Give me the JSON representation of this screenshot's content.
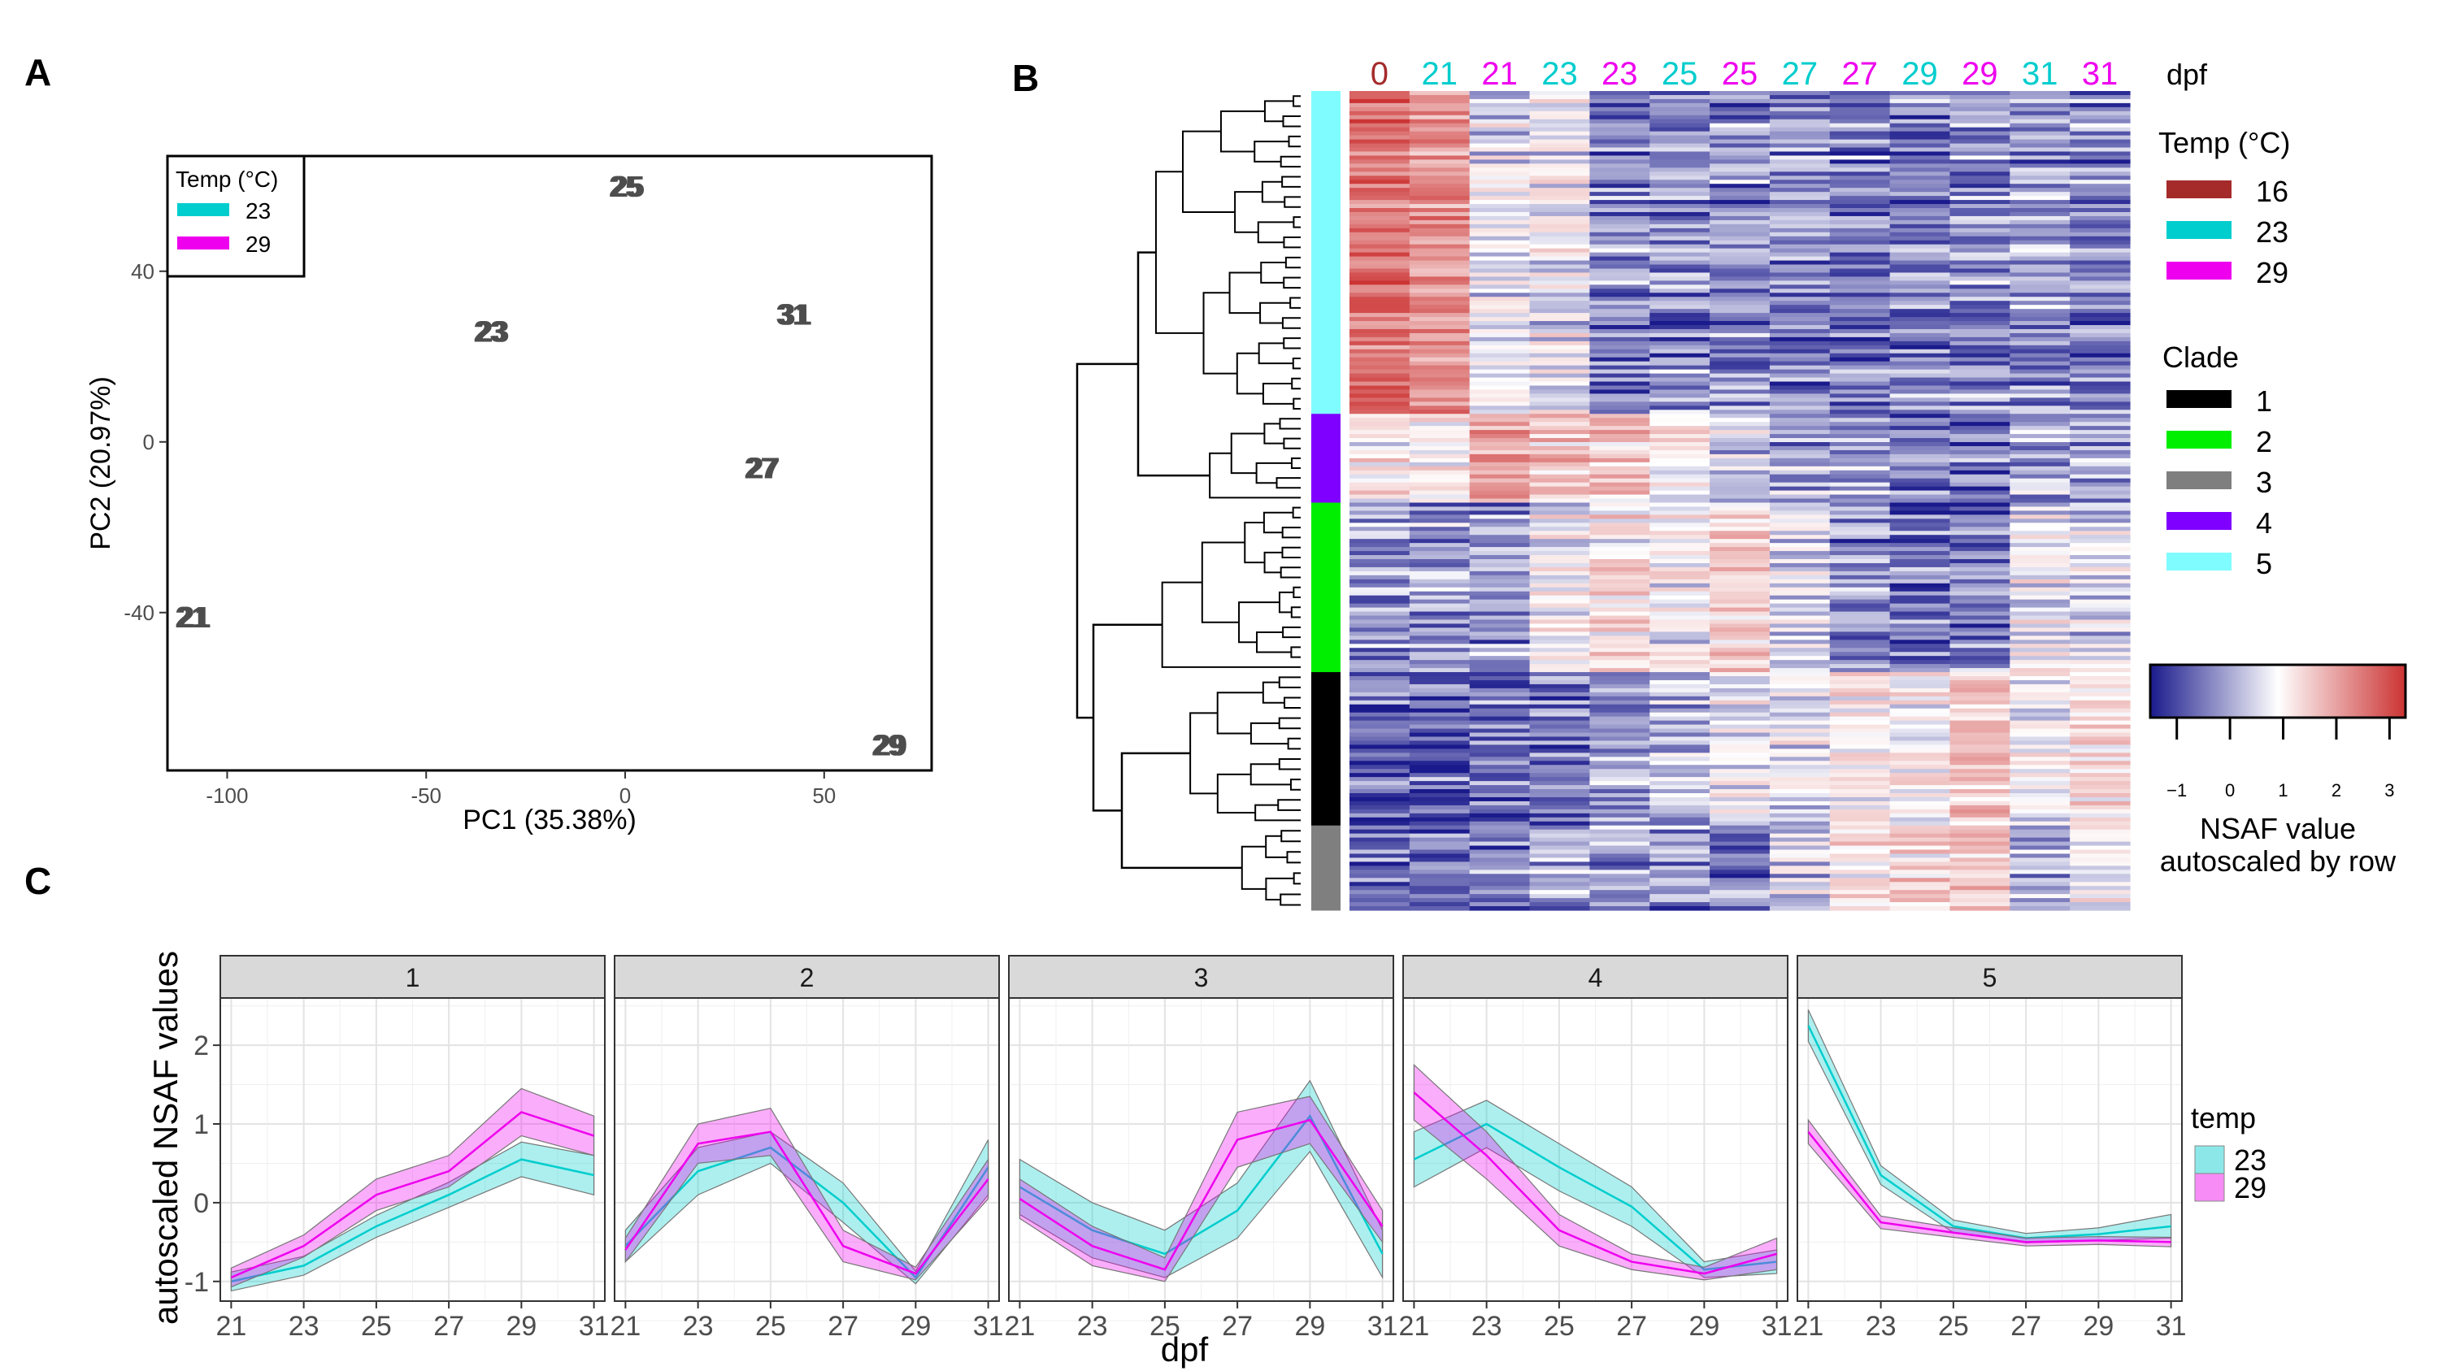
{
  "panels": {
    "a": "A",
    "b": "B",
    "c": "C"
  },
  "colors": {
    "t16": "#a52a2a",
    "t23": "#00cdcd",
    "t29": "#ee00ee",
    "clade1": "#000000",
    "clade2": "#00ee00",
    "clade3": "#7f7f7f",
    "clade4": "#7f00ff",
    "clade5": "#7ffcff",
    "heat_low": "#1a1a8c",
    "heat_mid": "#ffffff",
    "heat_high": "#cc3333"
  },
  "chart_data": [
    {
      "type": "scatter",
      "panel": "A",
      "xlabel": "PC1 (35.38%)",
      "ylabel": "PC2 (20.97%)",
      "xlim": [
        -115,
        77
      ],
      "ylim": [
        -77,
        67
      ],
      "xticks": [
        -100,
        -50,
        0,
        50
      ],
      "xtick_labels": [
        "-100",
        "-50",
        "0",
        "50"
      ],
      "yticks": [
        -40,
        0,
        40
      ],
      "ytick_labels": [
        "-40",
        "0",
        "40"
      ],
      "legend": {
        "title": "Temp (°C)",
        "entries": [
          {
            "label": "23",
            "color_key": "t23"
          },
          {
            "label": "29",
            "color_key": "t29"
          }
        ]
      },
      "points": [
        {
          "label": "25",
          "x": 0,
          "y": 60
        },
        {
          "label": "23",
          "x": -34,
          "y": 26
        },
        {
          "label": "31",
          "x": 42,
          "y": 30
        },
        {
          "label": "27",
          "x": 34,
          "y": -6
        },
        {
          "label": "21",
          "x": -109,
          "y": -41
        },
        {
          "label": "29",
          "x": 66,
          "y": -71
        }
      ]
    },
    {
      "type": "heatmap",
      "panel": "B",
      "columns": [
        {
          "label": "0",
          "temp": "t16"
        },
        {
          "label": "21",
          "temp": "t23"
        },
        {
          "label": "21",
          "temp": "t29"
        },
        {
          "label": "23",
          "temp": "t23"
        },
        {
          "label": "23",
          "temp": "t29"
        },
        {
          "label": "25",
          "temp": "t23"
        },
        {
          "label": "25",
          "temp": "t29"
        },
        {
          "label": "27",
          "temp": "t23"
        },
        {
          "label": "27",
          "temp": "t29"
        },
        {
          "label": "29",
          "temp": "t23"
        },
        {
          "label": "29",
          "temp": "t29"
        },
        {
          "label": "31",
          "temp": "t23"
        },
        {
          "label": "31",
          "temp": "t29"
        }
      ],
      "column_title": "dpf",
      "clade_blocks": [
        {
          "clade": "5",
          "rows": 80,
          "profile": [
            2.4,
            1.9,
            0.2,
            0.3,
            -0.6,
            -0.6,
            -0.5,
            -0.6,
            -0.7,
            -0.7,
            -0.6,
            -0.5,
            -0.6
          ]
        },
        {
          "clade": "4",
          "rows": 22,
          "profile": [
            0.6,
            0.5,
            1.6,
            1.2,
            1.1,
            0.5,
            0.0,
            -0.4,
            -0.5,
            -0.7,
            -0.8,
            -0.4,
            -0.5
          ]
        },
        {
          "clade": "2",
          "rows": 42,
          "profile": [
            -0.6,
            -0.5,
            -0.6,
            0.3,
            0.7,
            0.4,
            0.9,
            0.0,
            -0.5,
            -0.9,
            -0.8,
            0.2,
            0.0
          ]
        },
        {
          "clade": "1",
          "rows": 38,
          "profile": [
            -1.0,
            -0.9,
            -0.9,
            -0.7,
            -0.4,
            -0.2,
            0.2,
            0.1,
            0.6,
            0.4,
            1.1,
            0.3,
            0.8
          ]
        },
        {
          "clade": "3",
          "rows": 21,
          "profile": [
            -0.9,
            -0.9,
            -0.7,
            -0.4,
            -0.6,
            -0.7,
            -0.8,
            -0.1,
            0.8,
            0.9,
            1.2,
            -0.4,
            0.3
          ]
        }
      ],
      "legend_temp": {
        "title": "Temp (°C)",
        "entries": [
          {
            "label": "16",
            "color_key": "t16"
          },
          {
            "label": "23",
            "color_key": "t23"
          },
          {
            "label": "29",
            "color_key": "t29"
          }
        ]
      },
      "legend_clade": {
        "title": "Clade",
        "entries": [
          {
            "label": "1",
            "color_key": "clade1"
          },
          {
            "label": "2",
            "color_key": "clade2"
          },
          {
            "label": "3",
            "color_key": "clade3"
          },
          {
            "label": "4",
            "color_key": "clade4"
          },
          {
            "label": "5",
            "color_key": "clade5"
          }
        ]
      },
      "colorbar": {
        "range": [
          -1.5,
          3.3
        ],
        "ticks": [
          -1,
          0,
          1,
          2,
          3
        ],
        "tick_labels": [
          "−1",
          "0",
          "1",
          "2",
          "3"
        ],
        "title_lines": [
          "NSAF value",
          "autoscaled by row"
        ]
      }
    },
    {
      "type": "line",
      "panel": "C",
      "xlabel": "dpf",
      "ylabel": "autoscaled NSAF values",
      "x": [
        21,
        23,
        25,
        27,
        29,
        31
      ],
      "x_tick_labels": [
        "21",
        "23",
        "25",
        "27",
        "29",
        "31"
      ],
      "ylim": [
        -1.25,
        2.6
      ],
      "yticks": [
        -1,
        0,
        1,
        2
      ],
      "ytick_labels": [
        "-1",
        "0",
        "1",
        "2"
      ],
      "legend": {
        "title": "temp",
        "entries": [
          {
            "label": "23",
            "color_key": "t23"
          },
          {
            "label": "29",
            "color_key": "t29"
          }
        ]
      },
      "facets": [
        {
          "label": "1",
          "series": [
            {
              "name": "23",
              "values": [
                -1.0,
                -0.8,
                -0.3,
                0.1,
                0.55,
                0.35
              ],
              "ribbon": [
                0.12,
                0.12,
                0.14,
                0.16,
                0.22,
                0.25
              ]
            },
            {
              "name": "29",
              "values": [
                -0.95,
                -0.55,
                0.1,
                0.4,
                1.15,
                0.85
              ],
              "ribbon": [
                0.12,
                0.14,
                0.2,
                0.2,
                0.3,
                0.25
              ]
            }
          ]
        },
        {
          "label": "2",
          "series": [
            {
              "name": "23",
              "values": [
                -0.55,
                0.4,
                0.7,
                0.0,
                -0.95,
                0.45
              ],
              "ribbon": [
                0.2,
                0.3,
                0.2,
                0.25,
                0.08,
                0.35
              ]
            },
            {
              "name": "29",
              "values": [
                -0.6,
                0.75,
                0.9,
                -0.55,
                -0.9,
                0.3
              ],
              "ribbon": [
                0.15,
                0.25,
                0.3,
                0.2,
                0.08,
                0.25
              ]
            }
          ]
        },
        {
          "label": "3",
          "series": [
            {
              "name": "23",
              "values": [
                0.2,
                -0.35,
                -0.65,
                -0.1,
                1.1,
                -0.65
              ],
              "ribbon": [
                0.35,
                0.35,
                0.3,
                0.35,
                0.45,
                0.3
              ]
            },
            {
              "name": "29",
              "values": [
                0.05,
                -0.55,
                -0.85,
                0.8,
                1.05,
                -0.3
              ],
              "ribbon": [
                0.25,
                0.25,
                0.15,
                0.35,
                0.3,
                0.2
              ]
            }
          ]
        },
        {
          "label": "4",
          "series": [
            {
              "name": "23",
              "values": [
                0.55,
                1.0,
                0.45,
                -0.05,
                -0.85,
                -0.75
              ],
              "ribbon": [
                0.35,
                0.3,
                0.3,
                0.25,
                0.1,
                0.15
              ]
            },
            {
              "name": "29",
              "values": [
                1.4,
                0.6,
                -0.35,
                -0.75,
                -0.9,
                -0.65
              ],
              "ribbon": [
                0.35,
                0.3,
                0.2,
                0.1,
                0.08,
                0.2
              ]
            }
          ]
        },
        {
          "label": "5",
          "series": [
            {
              "name": "23",
              "values": [
                2.25,
                0.35,
                -0.3,
                -0.45,
                -0.4,
                -0.3
              ],
              "ribbon": [
                0.2,
                0.12,
                0.08,
                0.06,
                0.08,
                0.15
              ]
            },
            {
              "name": "29",
              "values": [
                0.9,
                -0.25,
                -0.38,
                -0.5,
                -0.48,
                -0.5
              ],
              "ribbon": [
                0.15,
                0.08,
                0.06,
                0.05,
                0.05,
                0.06
              ]
            }
          ]
        }
      ]
    }
  ]
}
